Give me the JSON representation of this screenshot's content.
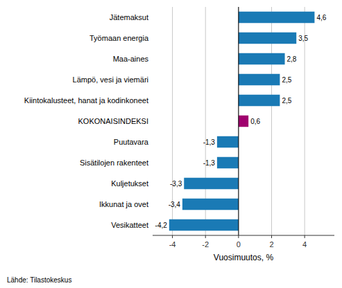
{
  "chart_data": {
    "type": "bar",
    "orientation": "horizontal",
    "categories": [
      "Vesikatteet",
      "Ikkunat ja ovet",
      "Kuljetukset",
      "Sisätilojen rakenteet",
      "Puutavara",
      "KOKONAISINDEKSI",
      "Kiintokalusteet, hanat ja kodinkoneet",
      "Lämpö, vesi ja viemäri",
      "Maa-aines",
      "Työmaan energia",
      "Jätemaksut"
    ],
    "values": [
      -4.2,
      -3.4,
      -3.3,
      -1.3,
      -1.3,
      0.6,
      2.5,
      2.5,
      2.8,
      3.5,
      4.6
    ],
    "value_labels": [
      "-4,2",
      "-3,4",
      "-3,3",
      "-1,3",
      "-1,3",
      "0,6",
      "2,5",
      "2,5",
      "2,8",
      "3,5",
      "4,6"
    ],
    "colors": [
      "#1a7ab5",
      "#1a7ab5",
      "#1a7ab5",
      "#1a7ab5",
      "#1a7ab5",
      "#a0006e",
      "#1a7ab5",
      "#1a7ab5",
      "#1a7ab5",
      "#1a7ab5",
      "#1a7ab5"
    ],
    "x_label": "Vuosimuutos, %",
    "xlim": [
      -5.2,
      5.8
    ],
    "xticks": [
      -4,
      -2,
      0,
      2,
      4
    ],
    "grid": true,
    "data_labels": true,
    "annotations": [
      "Lähde: Tilastokeskus"
    ]
  }
}
